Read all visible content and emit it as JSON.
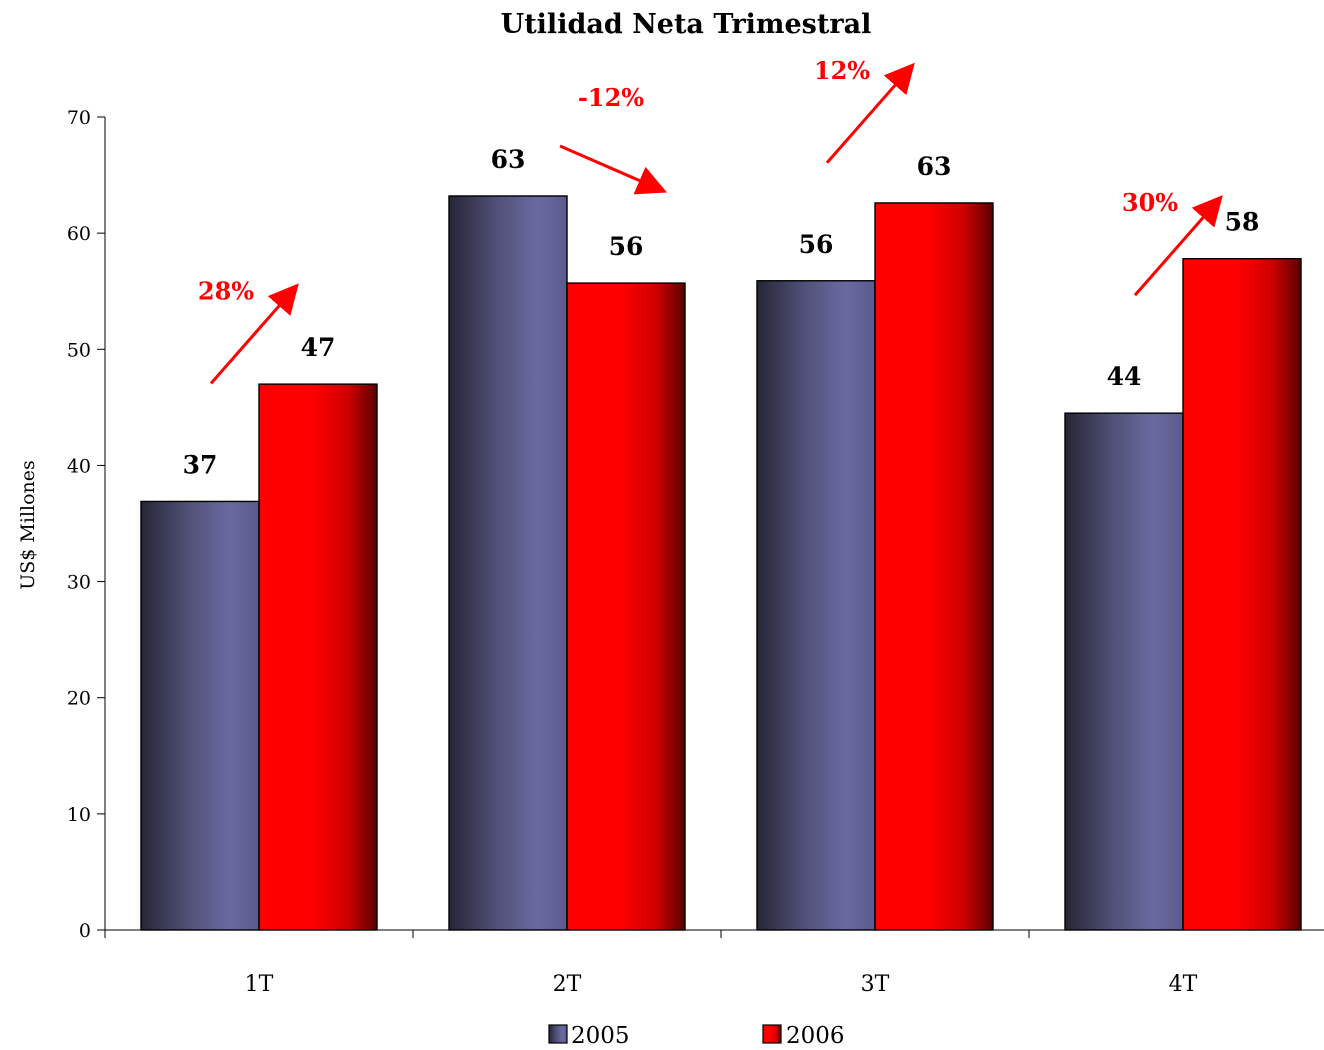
{
  "chart_data": {
    "type": "bar",
    "title": "Utilidad Neta Trimestral",
    "ylabel": "US$ Millones",
    "xlabel": "",
    "ylim": [
      0,
      70
    ],
    "yticks": [
      0,
      10,
      20,
      30,
      40,
      50,
      60,
      70
    ],
    "categories": [
      "1T",
      "2T",
      "3T",
      "4T"
    ],
    "series": [
      {
        "name": "2005",
        "values": [
          36.9,
          63.2,
          55.9,
          44.5
        ],
        "labels": [
          "37",
          "63",
          "56",
          "44"
        ],
        "color": "#5f5f8f"
      },
      {
        "name": "2006",
        "values": [
          47.0,
          55.7,
          62.6,
          57.8
        ],
        "labels": [
          "47",
          "56",
          "63",
          "58"
        ],
        "color": "#ff0000"
      }
    ],
    "growth_annotations": [
      {
        "category": "1T",
        "text": "28%",
        "direction": "up"
      },
      {
        "category": "2T",
        "text": "-12%",
        "direction": "down"
      },
      {
        "category": "3T",
        "text": "12%",
        "direction": "up"
      },
      {
        "category": "4T",
        "text": "30%",
        "direction": "up"
      }
    ],
    "annotation_color": "#ff0000",
    "grid": false,
    "legend_position": "bottom"
  }
}
